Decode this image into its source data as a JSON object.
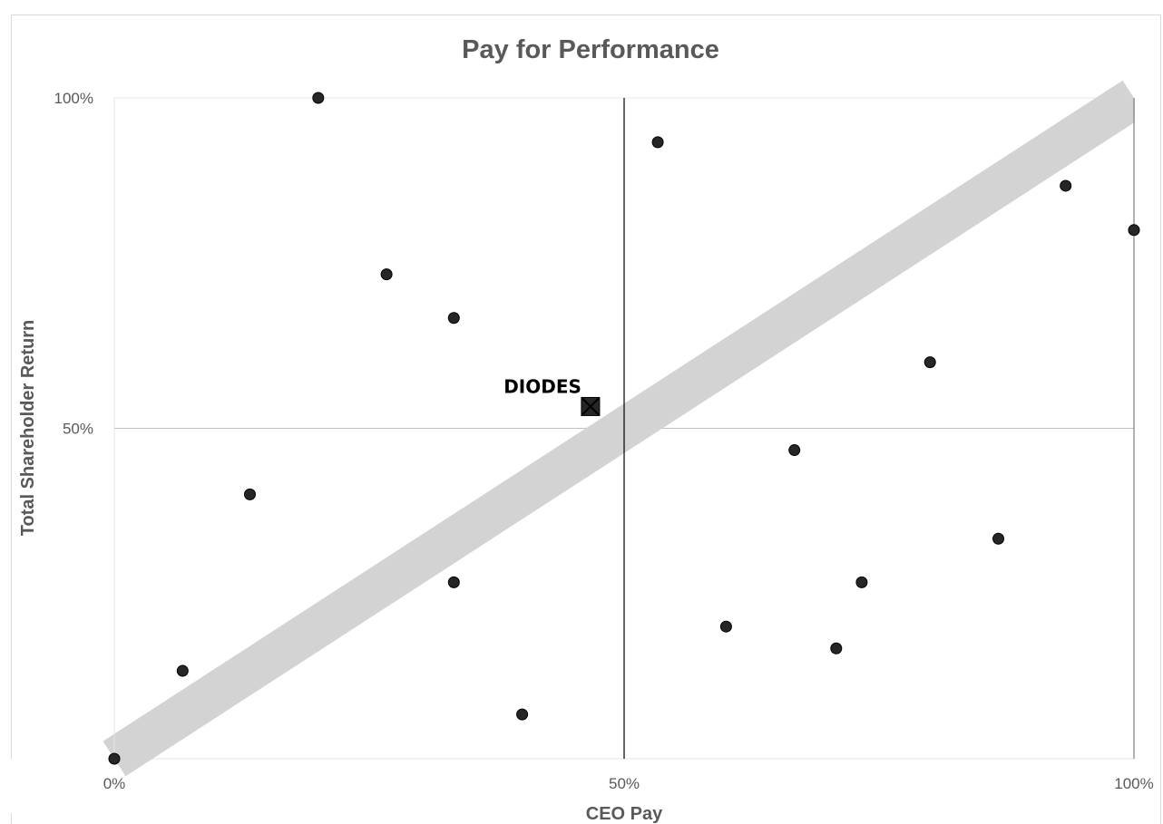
{
  "chart_data": {
    "type": "scatter",
    "title": "Pay for Performance",
    "xlabel": "CEO Pay",
    "ylabel": "Total Shareholder Return",
    "xlim": [
      0,
      100
    ],
    "ylim": [
      0,
      100
    ],
    "x_ticks": [
      "0%",
      "50%",
      "100%"
    ],
    "y_ticks": [
      "50%",
      "100%"
    ],
    "grid": true,
    "colors": {
      "points": "#262626",
      "trend_band": "#d3d3d3",
      "gridline": "#bfbfbf",
      "divider": "#000000",
      "highlight": "#262626"
    },
    "series": [
      {
        "points": [
          [
            0,
            0
          ],
          [
            6.7,
            13.3
          ],
          [
            13.3,
            40
          ],
          [
            20,
            100
          ],
          [
            26.7,
            73.3
          ],
          [
            33.3,
            66.7
          ],
          [
            33.3,
            26.7
          ],
          [
            40,
            6.7
          ],
          [
            53.3,
            93.3
          ],
          [
            60,
            20
          ],
          [
            66.7,
            46.7
          ],
          [
            70.8,
            16.7
          ],
          [
            73.3,
            26.7
          ],
          [
            80,
            60
          ],
          [
            86.7,
            33.3
          ],
          [
            93.3,
            86.7
          ],
          [
            100,
            80
          ]
        ]
      }
    ],
    "highlight": {
      "label": "DIODES",
      "x": 46.7,
      "y": 53.3,
      "marker": "boxed-x"
    },
    "trend_band": {
      "from": [
        0,
        0
      ],
      "to": [
        100,
        100
      ]
    }
  }
}
